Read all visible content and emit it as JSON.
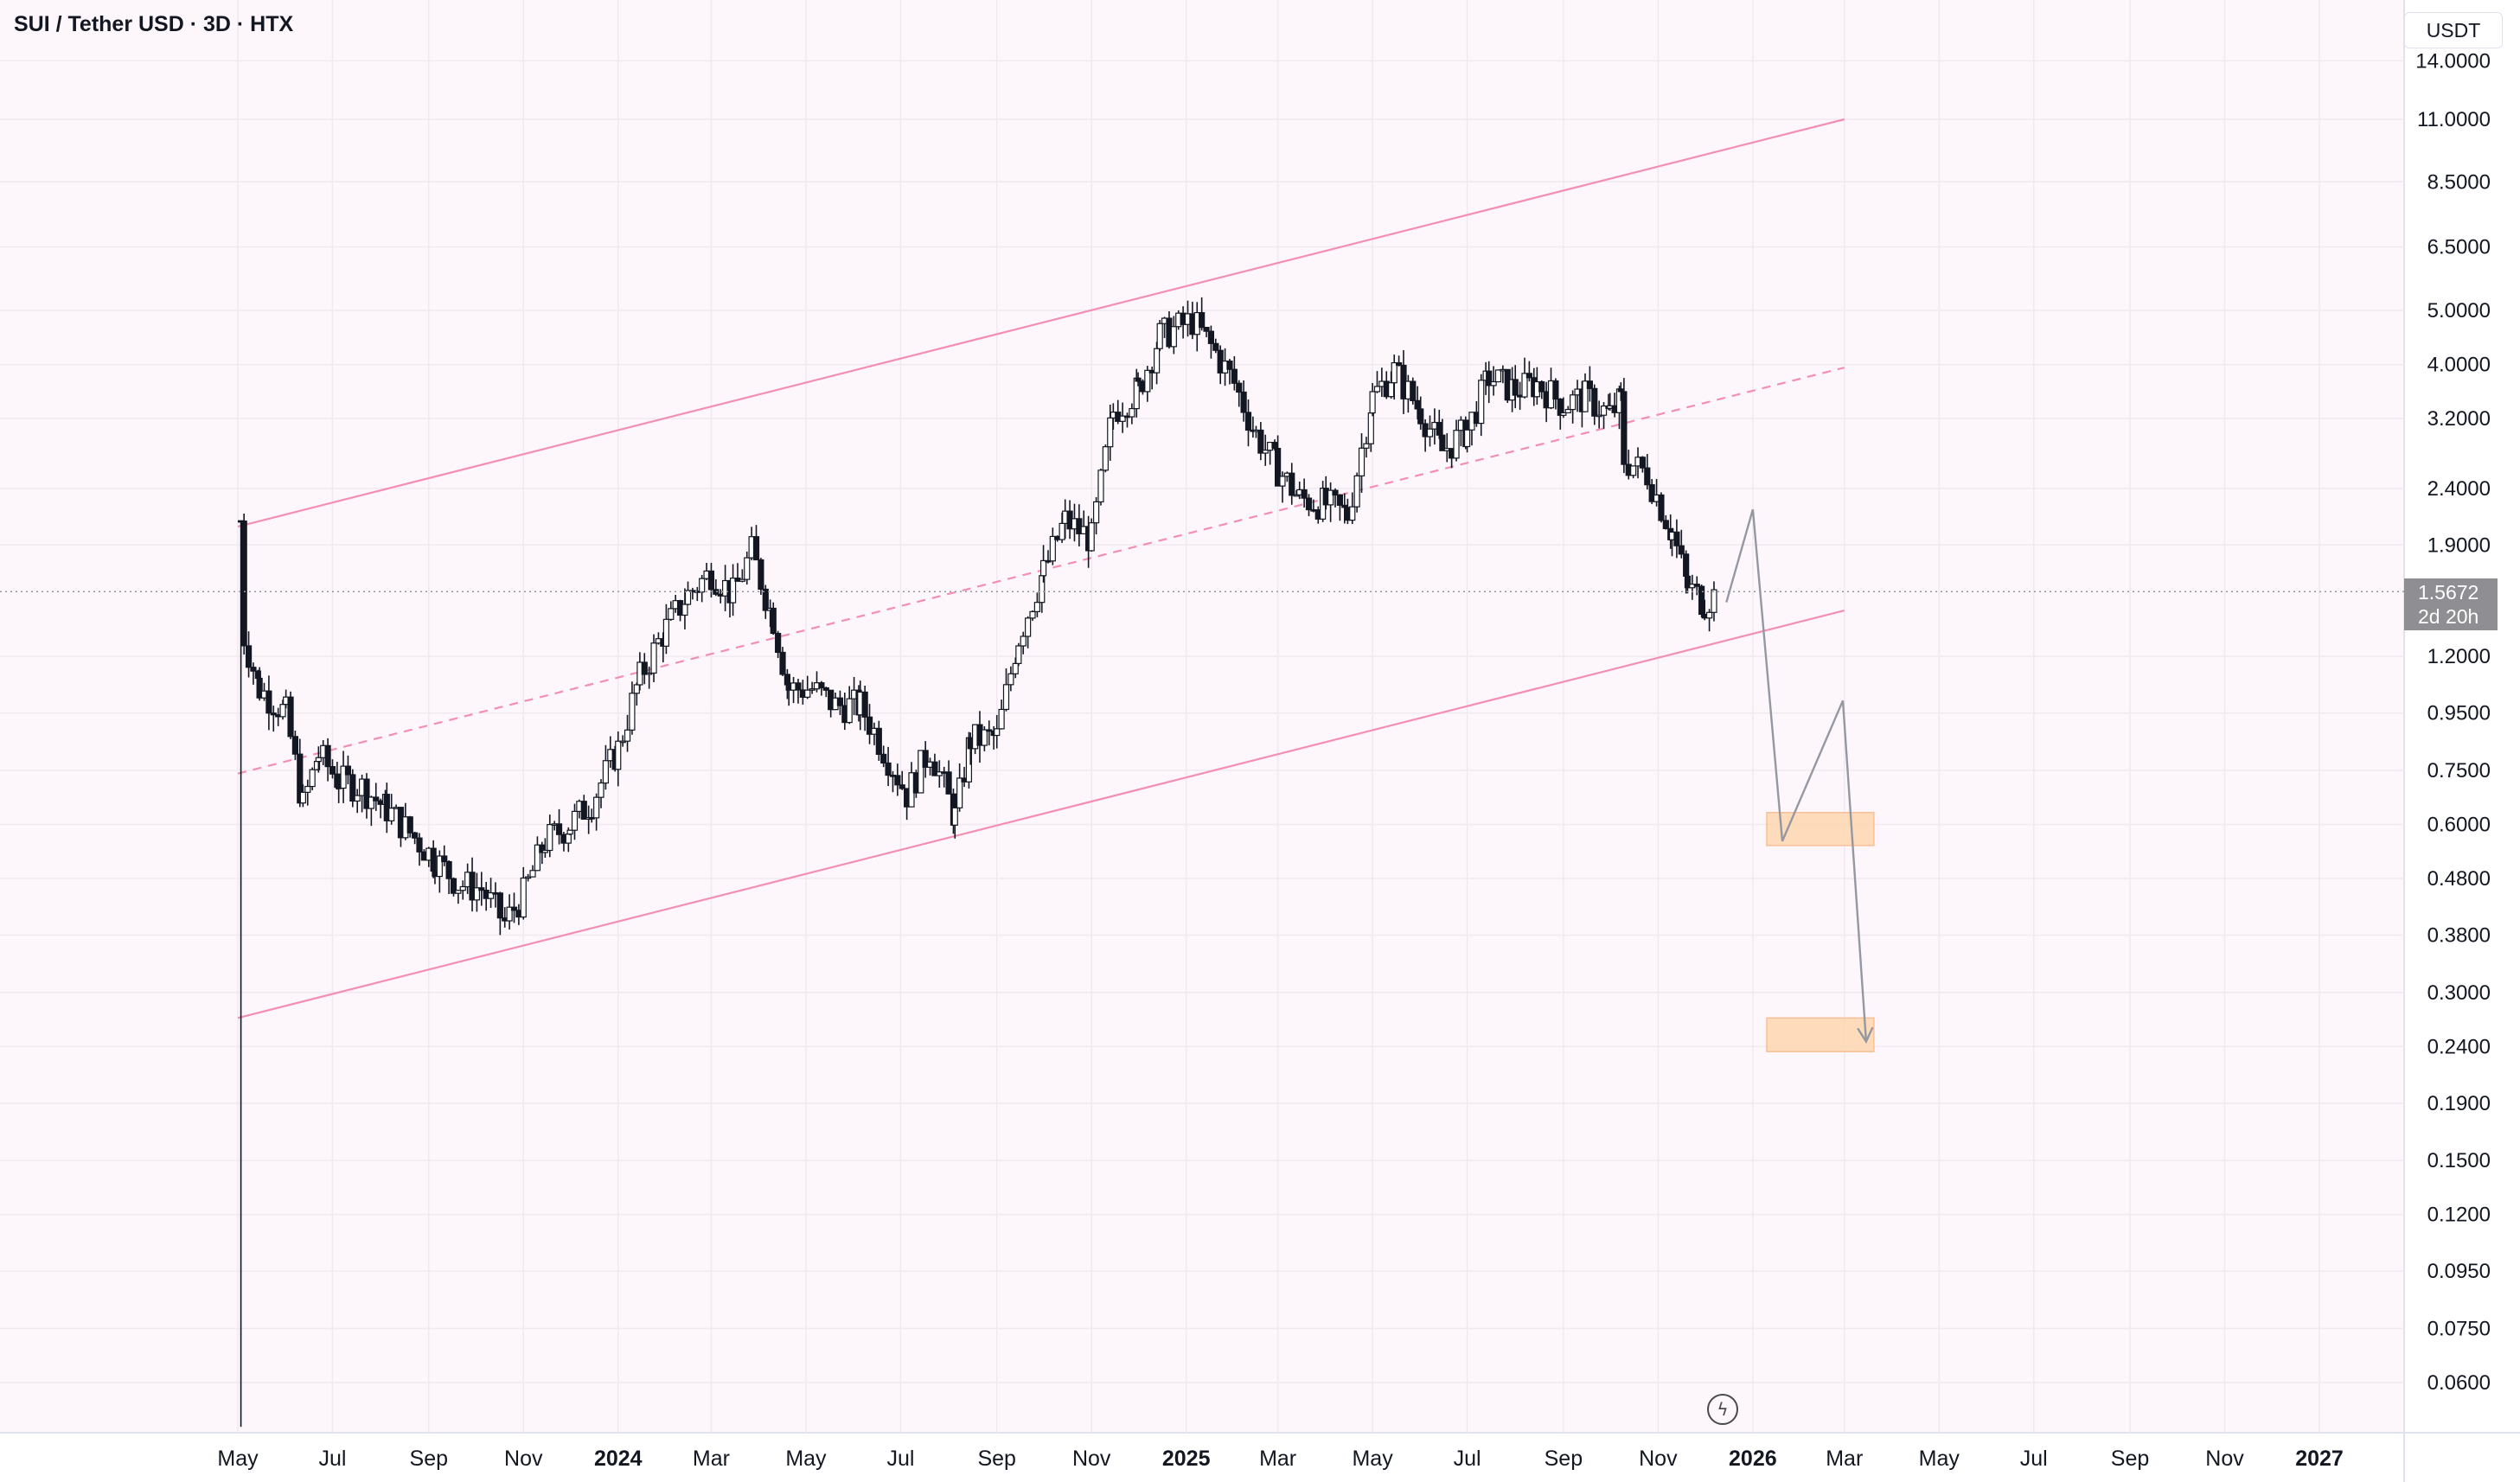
{
  "header": {
    "title": "SUI / Tether USD · 3D · HTX"
  },
  "axis": {
    "currency": "USDT"
  },
  "last_price": {
    "value": "1.5672",
    "countdown": "2d 20h"
  },
  "chart_data": {
    "type": "candlestick",
    "title": "SUI / Tether USD · 3D · HTX",
    "y_scale": "log",
    "y_ticks": [
      0.06,
      0.075,
      0.095,
      0.12,
      0.15,
      0.19,
      0.24,
      0.3,
      0.38,
      0.48,
      0.6,
      0.75,
      0.95,
      1.2,
      1.9,
      2.4,
      3.2,
      4,
      5,
      6.5,
      8.5,
      11,
      14
    ],
    "y_tick_labels": [
      "0.0600",
      "0.0750",
      "0.0950",
      "0.1200",
      "0.1500",
      "0.1900",
      "0.2400",
      "0.3000",
      "0.3800",
      "0.4800",
      "0.6000",
      "0.7500",
      "0.9500",
      "1.2000",
      "1.9000",
      "2.4000",
      "3.2000",
      "4.0000",
      "5.0000",
      "6.5000",
      "8.5000",
      "11.0000",
      "14.0000"
    ],
    "x_ticks": [
      {
        "date": "2023-05-01",
        "label": "May",
        "bold": false
      },
      {
        "date": "2023-07-01",
        "label": "Jul",
        "bold": false
      },
      {
        "date": "2023-09-01",
        "label": "Sep",
        "bold": false
      },
      {
        "date": "2023-11-01",
        "label": "Nov",
        "bold": false
      },
      {
        "date": "2024-01-01",
        "label": "2024",
        "bold": true
      },
      {
        "date": "2024-03-01",
        "label": "Mar",
        "bold": false
      },
      {
        "date": "2024-05-01",
        "label": "May",
        "bold": false
      },
      {
        "date": "2024-07-01",
        "label": "Jul",
        "bold": false
      },
      {
        "date": "2024-09-01",
        "label": "Sep",
        "bold": false
      },
      {
        "date": "2024-11-01",
        "label": "Nov",
        "bold": false
      },
      {
        "date": "2025-01-01",
        "label": "2025",
        "bold": true
      },
      {
        "date": "2025-03-01",
        "label": "Mar",
        "bold": false
      },
      {
        "date": "2025-05-01",
        "label": "May",
        "bold": false
      },
      {
        "date": "2025-07-01",
        "label": "Jul",
        "bold": false
      },
      {
        "date": "2025-09-01",
        "label": "Sep",
        "bold": false
      },
      {
        "date": "2025-11-01",
        "label": "Nov",
        "bold": false
      },
      {
        "date": "2026-01-01",
        "label": "2026",
        "bold": true
      },
      {
        "date": "2026-03-01",
        "label": "Mar",
        "bold": false
      },
      {
        "date": "2026-05-01",
        "label": "May",
        "bold": false
      },
      {
        "date": "2026-07-01",
        "label": "Jul",
        "bold": false
      },
      {
        "date": "2026-09-01",
        "label": "Sep",
        "bold": false
      },
      {
        "date": "2026-11-01",
        "label": "Nov",
        "bold": false
      },
      {
        "date": "2027-01-01",
        "label": "2027",
        "bold": true
      }
    ],
    "price_path": [
      [
        "2023-05-03",
        2.1,
        true
      ],
      [
        "2023-05-05",
        1.3
      ],
      [
        "2023-05-15",
        1.05
      ],
      [
        "2023-06-01",
        0.95
      ],
      [
        "2023-06-12",
        0.65
      ],
      [
        "2023-06-22",
        0.8
      ],
      [
        "2023-07-05",
        0.72
      ],
      [
        "2023-07-20",
        0.7
      ],
      [
        "2023-08-05",
        0.64
      ],
      [
        "2023-08-20",
        0.58
      ],
      [
        "2023-09-05",
        0.52
      ],
      [
        "2023-09-20",
        0.47
      ],
      [
        "2023-10-05",
        0.46
      ],
      [
        "2023-10-20",
        0.4
      ],
      [
        "2023-11-01",
        0.45
      ],
      [
        "2023-11-15",
        0.56
      ],
      [
        "2023-12-01",
        0.6
      ],
      [
        "2023-12-15",
        0.66
      ],
      [
        "2024-01-01",
        0.82
      ],
      [
        "2024-01-15",
        1.1
      ],
      [
        "2024-02-01",
        1.35
      ],
      [
        "2024-02-15",
        1.55
      ],
      [
        "2024-03-01",
        1.7
      ],
      [
        "2024-03-15",
        1.55
      ],
      [
        "2024-03-27",
        1.85
      ],
      [
        "2024-04-10",
        1.4
      ],
      [
        "2024-04-20",
        1.05
      ],
      [
        "2024-05-05",
        1.05
      ],
      [
        "2024-05-20",
        0.98
      ],
      [
        "2024-06-05",
        0.98
      ],
      [
        "2024-06-20",
        0.82
      ],
      [
        "2024-07-05",
        0.68
      ],
      [
        "2024-07-20",
        0.82
      ],
      [
        "2024-08-05",
        0.62
      ],
      [
        "2024-08-15",
        0.85
      ],
      [
        "2024-09-01",
        0.86
      ],
      [
        "2024-09-15",
        1.3
      ],
      [
        "2024-10-01",
        1.7
      ],
      [
        "2024-10-15",
        2.1
      ],
      [
        "2024-11-01",
        1.95
      ],
      [
        "2024-11-15",
        3.3
      ],
      [
        "2024-12-01",
        3.6
      ],
      [
        "2024-12-15",
        4.5
      ],
      [
        "2025-01-05",
        4.8
      ],
      [
        "2025-01-20",
        4.2
      ],
      [
        "2025-02-01",
        3.7
      ],
      [
        "2025-02-15",
        3.0
      ],
      [
        "2025-03-01",
        2.6
      ],
      [
        "2025-03-15",
        2.3
      ],
      [
        "2025-04-01",
        2.25
      ],
      [
        "2025-04-15",
        2.15
      ],
      [
        "2025-05-01",
        3.5
      ],
      [
        "2025-05-15",
        3.9
      ],
      [
        "2025-06-01",
        3.3
      ],
      [
        "2025-06-15",
        2.8
      ],
      [
        "2025-07-01",
        3.05
      ],
      [
        "2025-07-15",
        3.8
      ],
      [
        "2025-08-01",
        3.6
      ],
      [
        "2025-08-15",
        3.7
      ],
      [
        "2025-09-01",
        3.4
      ],
      [
        "2025-09-15",
        3.5
      ],
      [
        "2025-10-01",
        3.25
      ],
      [
        "2025-10-08",
        3.45
      ],
      [
        "2025-10-10",
        2.7
      ],
      [
        "2025-10-25",
        2.55
      ],
      [
        "2025-11-10",
        2.0
      ],
      [
        "2025-11-20",
        1.6
      ],
      [
        "2025-12-01",
        1.5
      ],
      [
        "2025-12-10",
        1.5672
      ]
    ],
    "channel": {
      "upper": [
        [
          "2023-05-01",
          2.05
        ],
        [
          "2026-03-01",
          11.0
        ]
      ],
      "middle": [
        [
          "2023-05-01",
          0.74
        ],
        [
          "2026-03-01",
          3.95
        ]
      ],
      "lower": [
        [
          "2023-05-01",
          0.27
        ],
        [
          "2026-03-01",
          1.45
        ]
      ]
    },
    "projection": [
      [
        "2025-12-15",
        1.5
      ],
      [
        "2026-01-01",
        2.2
      ],
      [
        "2026-01-20",
        0.56
      ],
      [
        "2026-02-28",
        1.0
      ],
      [
        "2026-03-15",
        0.245
      ]
    ],
    "target_zones": [
      {
        "from": "2026-01-10",
        "to": "2026-03-20",
        "low": 0.55,
        "high": 0.63
      },
      {
        "from": "2026-01-10",
        "to": "2026-03-20",
        "low": 0.235,
        "high": 0.27
      }
    ],
    "colors": {
      "channel": "#f48fb1",
      "candles": "#131722",
      "projection": "#9598a1",
      "zone": "#fdd9b5",
      "zone_border": "#f7b98c",
      "last_price_bg": "#8e8e93"
    },
    "grid": true
  }
}
